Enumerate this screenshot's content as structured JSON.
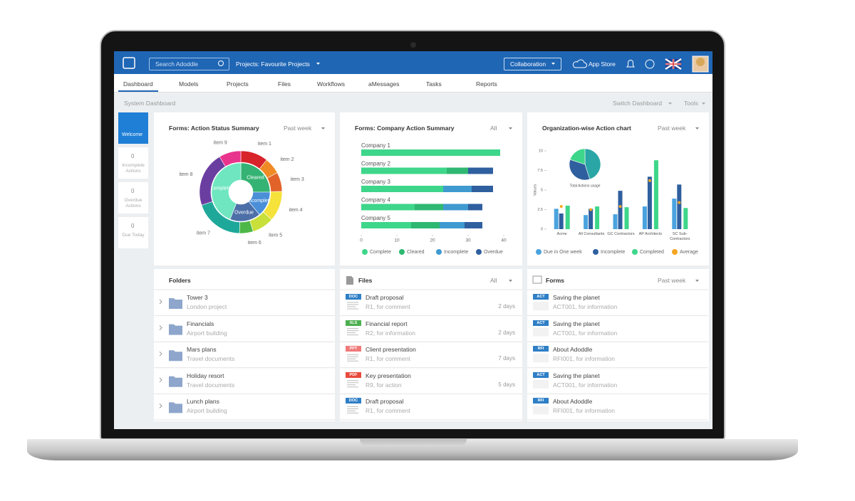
{
  "header": {
    "search_placeholder": "Search Adoddle",
    "project_selector": "Projects: Favourite Projects",
    "collaboration": "Collaboration",
    "app_store": "App Store"
  },
  "nav": {
    "tabs": [
      "Dashboard",
      "Models",
      "Projects",
      "Files",
      "Workflows",
      "aMessages",
      "Tasks",
      "Reports"
    ]
  },
  "toolbar": {
    "title": "System Dashboard",
    "switch": "Switch Dashboard",
    "tools": "Tools"
  },
  "sidebar": {
    "welcome": "Welcome",
    "counters": [
      {
        "value": 0,
        "label": "Incomplete Actions"
      },
      {
        "value": 0,
        "label": "Overdue Actions"
      },
      {
        "value": 0,
        "label": "Due Today"
      }
    ]
  },
  "widgets": {
    "action_status": {
      "title": "Forms: Action Status Summary",
      "filter": "Past week",
      "chart": {
        "type": "sunburst",
        "inner": {
          "categories": [
            "Cleared",
            "Incomplete",
            "Overdue",
            "Complete"
          ],
          "values": [
            25,
            14,
            17,
            44
          ],
          "colors": [
            "#35b374",
            "#4a8fd8",
            "#4d6fa8",
            "#6fe6c0"
          ]
        },
        "outer": {
          "categories": [
            "item 1",
            "item 2",
            "item 3",
            "item 4",
            "item 5",
            "item 6",
            "item 7",
            "item 8",
            "item 9"
          ],
          "values": [
            10,
            6,
            7,
            11,
            8,
            5,
            18,
            20,
            8
          ],
          "colors": [
            "#d8242b",
            "#f08a24",
            "#e2632a",
            "#f5e23a",
            "#c9e03a",
            "#4db848",
            "#1ea89a",
            "#6a3ea1",
            "#e8348c"
          ]
        }
      }
    },
    "company_summary": {
      "title": "Forms: Company Action Summary",
      "filter": "All",
      "chart": {
        "type": "bar",
        "orientation": "horizontal",
        "stacked": true,
        "categories": [
          "Company 1",
          "Company 2",
          "Company 3",
          "Company 4",
          "Company 5"
        ],
        "series": [
          {
            "name": "Complete",
            "color": "#3ed68a",
            "values": [
              39,
              24,
              23,
              15,
              14
            ]
          },
          {
            "name": "Cleared",
            "color": "#2fb872",
            "values": [
              0,
              6,
              0,
              8,
              8
            ]
          },
          {
            "name": "Incomplete",
            "color": "#3f9ad0",
            "values": [
              0,
              0,
              8,
              7,
              7
            ]
          },
          {
            "name": "Overdue",
            "color": "#2f5f9e",
            "values": [
              0,
              7,
              6,
              4,
              5
            ]
          }
        ],
        "xlim": [
          0,
          40
        ],
        "xticks": [
          0,
          10,
          20,
          30,
          40
        ],
        "legend": "bottom"
      }
    },
    "org_chart": {
      "title": "Organization-wise Action chart",
      "filter": "Past week",
      "chart": {
        "type": "bar",
        "ylabel": "Values",
        "categories": [
          "Acme",
          "All Consultants",
          "GC Contractors",
          "AP Architects",
          "SC Sub-Contractors"
        ],
        "series": [
          {
            "name": "Due in One week",
            "color": "#4aa3df",
            "values": [
              2.6,
              1.8,
              1.9,
              2.9,
              3.9
            ]
          },
          {
            "name": "Incomplete",
            "color": "#2f5f9e",
            "values": [
              2,
              2.6,
              4.9,
              6.7,
              5.7
            ]
          },
          {
            "name": "Completed",
            "color": "#3ed68a",
            "values": [
              3,
              2.9,
              2.8,
              8.8,
              2.7
            ]
          },
          {
            "name": "Average",
            "color": "#f5a623",
            "values": [
              2.9,
              2.5,
              2.9,
              6.2,
              3.4
            ],
            "marker": "dot"
          }
        ],
        "ylim": [
          0,
          10
        ],
        "yticks": [
          0,
          2.5,
          5,
          7.5,
          10
        ],
        "legend": "bottom",
        "inset": {
          "type": "pie",
          "title": "Total Actions usage",
          "values": [
            45,
            35,
            20
          ],
          "colors": [
            "#2aa6a6",
            "#2f5f9e",
            "#3ed68a"
          ]
        }
      }
    },
    "folders": {
      "title": "Folders",
      "items": [
        {
          "name": "Tower 3",
          "sub": "London project"
        },
        {
          "name": "Financials",
          "sub": "Airport building"
        },
        {
          "name": "Mars plans",
          "sub": "Travel documents"
        },
        {
          "name": "Holiday resort",
          "sub": "Travel documents"
        },
        {
          "name": "Lunch plans",
          "sub": "Airport building"
        }
      ]
    },
    "files": {
      "title": "Files",
      "filter": "All",
      "items": [
        {
          "badge": "DOC",
          "color": "#2f7fc6",
          "name": "Draft proposal",
          "sub": "R1, for comment",
          "age": "2 days"
        },
        {
          "badge": "XLS",
          "color": "#4caf50",
          "name": "Financial report",
          "sub": "R2, for information",
          "age": "2 days"
        },
        {
          "badge": "PPT",
          "color": "#f07a7a",
          "name": "Client presentation",
          "sub": "R1, for comment",
          "age": "7 days"
        },
        {
          "badge": "PDF",
          "color": "#e84a3c",
          "name": "Key presentation",
          "sub": "R9, for action",
          "age": "5 days"
        },
        {
          "badge": "DOC",
          "color": "#2f7fc6",
          "name": "Draft proposal",
          "sub": "R1, for comment"
        }
      ]
    },
    "forms": {
      "title": "Forms",
      "filter": "Past week",
      "items": [
        {
          "badge": "ACT",
          "color": "#2f7fc6",
          "name": "Saving the planet",
          "sub": "ACT001, for information"
        },
        {
          "badge": "ACT",
          "color": "#2f7fc6",
          "name": "Saving the planet",
          "sub": "ACT001, for information"
        },
        {
          "badge": "RFI",
          "color": "#2f7fc6",
          "name": "About Adoddle",
          "sub": "RFI001, for information"
        },
        {
          "badge": "ACT",
          "color": "#2f7fc6",
          "name": "Saving the planet",
          "sub": "ACT001, for information"
        },
        {
          "badge": "RFI",
          "color": "#2f7fc6",
          "name": "About Adoddle",
          "sub": "RFI001, for information"
        }
      ]
    }
  }
}
